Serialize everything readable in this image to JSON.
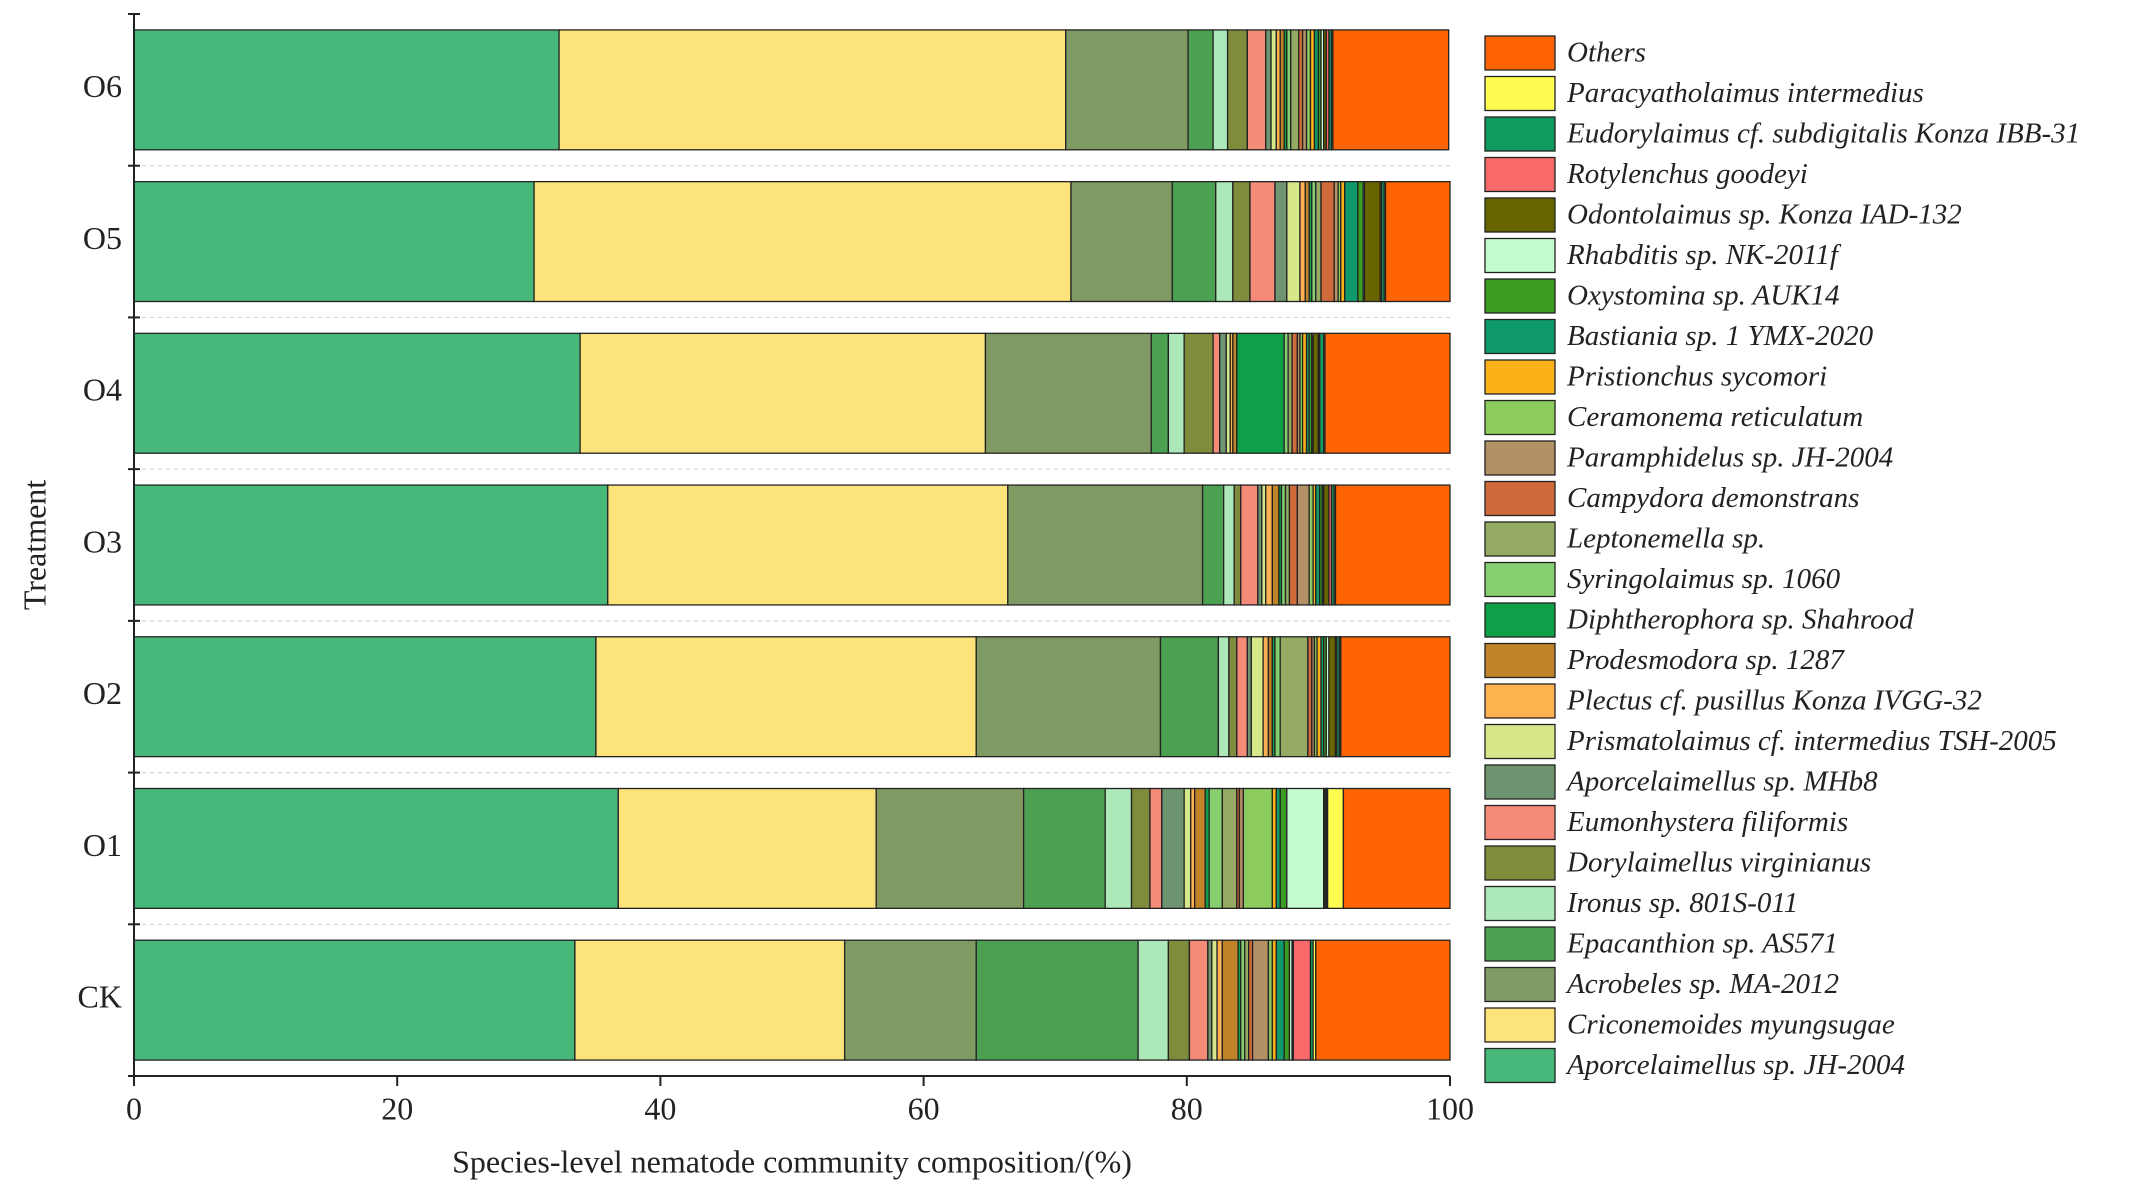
{
  "chart_data": {
    "type": "stacked-bar-horizontal",
    "x_label": "Species-level nematode community composition/(%)",
    "y_label": "Treatment",
    "categories": [
      "CK",
      "O1",
      "O2",
      "O3",
      "O4",
      "O5",
      "O6"
    ],
    "xlim": [
      0,
      100
    ],
    "xticks": [
      0,
      20,
      40,
      60,
      80,
      100
    ],
    "series": [
      {
        "name": "Aporcelaimellus sp. JH-2004",
        "color": "#48b87a",
        "values": [
          33.5,
          36.8,
          35.1,
          36.0,
          33.9,
          30.4,
          32.3
        ]
      },
      {
        "name": "Criconemoides myungsugae",
        "color": "#fde47a",
        "values": [
          20.5,
          19.6,
          28.9,
          30.4,
          30.8,
          40.8,
          38.5
        ]
      },
      {
        "name": "Acrobeles sp. MA-2012",
        "color": "#7f9a62",
        "values": [
          10.0,
          11.2,
          14.0,
          14.8,
          12.6,
          7.7,
          9.3
        ]
      },
      {
        "name": "Epacanthion sp. AS571",
        "color": "#4ca052",
        "values": [
          12.3,
          6.2,
          4.4,
          1.6,
          1.3,
          3.3,
          1.9
        ]
      },
      {
        "name": "Ironus sp. 801S-011",
        "color": "#ace8b8",
        "values": [
          2.3,
          2.0,
          0.8,
          0.8,
          1.2,
          1.3,
          1.1
        ]
      },
      {
        "name": "Dorylaimellus virginianus",
        "color": "#7f8c3c",
        "values": [
          1.6,
          1.4,
          0.6,
          0.5,
          2.2,
          1.3,
          1.5
        ]
      },
      {
        "name": "Eumonhystera filiformis",
        "color": "#f48a78",
        "values": [
          1.4,
          0.9,
          0.8,
          1.3,
          0.5,
          1.9,
          1.4
        ]
      },
      {
        "name": "Aporcelaimellus sp. MHb8",
        "color": "#6e9470",
        "values": [
          0.3,
          1.7,
          0.3,
          0.3,
          0.5,
          0.9,
          0.4
        ]
      },
      {
        "name": "Prismatolaimus cf. intermedius TSH-2005",
        "color": "#d6e88a",
        "values": [
          0.4,
          0.5,
          0.9,
          0.3,
          0.3,
          1.0,
          0.4
        ]
      },
      {
        "name": "Plectus cf. pusillus Konza IVGG-32",
        "color": "#fdb14f",
        "values": [
          0.4,
          0.3,
          0.4,
          0.5,
          0.2,
          0.4,
          0.3
        ]
      },
      {
        "name": "Prodesmodora sp. 1287",
        "color": "#c08327",
        "values": [
          1.2,
          0.8,
          0.3,
          0.5,
          0.3,
          0.3,
          0.3
        ]
      },
      {
        "name": "Diphtherophora sp. Shahrood",
        "color": "#0e9f48",
        "values": [
          0.2,
          0.3,
          0.2,
          0.2,
          3.6,
          0.2,
          0.2
        ]
      },
      {
        "name": "Syringolaimus sp. 1060",
        "color": "#86cf70",
        "values": [
          0.3,
          1.0,
          0.4,
          0.3,
          0.3,
          0.3,
          0.3
        ]
      },
      {
        "name": "Leptonemella sp.",
        "color": "#95aa63",
        "values": [
          0.3,
          1.1,
          2.1,
          0.3,
          0.3,
          0.4,
          0.6
        ]
      },
      {
        "name": "Campydora demonstrans",
        "color": "#cf6b3a",
        "values": [
          0.3,
          0.2,
          0.3,
          0.6,
          0.4,
          1.0,
          0.3
        ]
      },
      {
        "name": "Paramphidelus sp. JH-2004",
        "color": "#b39066",
        "values": [
          1.2,
          0.3,
          0.2,
          0.9,
          0.2,
          0.3,
          0.3
        ]
      },
      {
        "name": "Ceramonema reticulatum",
        "color": "#8ccc5e",
        "values": [
          0.3,
          2.2,
          0.2,
          0.3,
          0.2,
          0.2,
          0.3
        ]
      },
      {
        "name": "Pristionchus sycomori",
        "color": "#fbb118",
        "values": [
          0.3,
          0.3,
          0.3,
          0.2,
          0.3,
          0.3,
          0.3
        ]
      },
      {
        "name": "Bastiania sp. 1 YMX-2020",
        "color": "#0e9a6a",
        "values": [
          0.6,
          0.3,
          0.2,
          0.3,
          0.2,
          1.0,
          0.3
        ]
      },
      {
        "name": "Oxystomina sp. AUK14",
        "color": "#3c9c22",
        "values": [
          0.4,
          0.5,
          0.2,
          0.2,
          0.2,
          0.4,
          0.2
        ]
      },
      {
        "name": "Rhabditis sp. NK-2011f",
        "color": "#c4fcd0",
        "values": [
          0.2,
          2.8,
          0.2,
          0.1,
          0.1,
          0.1,
          0.2
        ]
      },
      {
        "name": "Odontolaimus sp. Konza IAD-132",
        "color": "#686400",
        "values": [
          0.1,
          0.1,
          0.5,
          0.4,
          0.4,
          1.2,
          0.2
        ]
      },
      {
        "name": "Rotylenchus goodeyi",
        "color": "#fa6a6a",
        "values": [
          1.3,
          0.1,
          0.1,
          0.2,
          0.1,
          0.1,
          0.2
        ]
      },
      {
        "name": "Eudorylaimus cf. subdigitalis Konza IBB-31",
        "color": "#109a5e",
        "values": [
          0.2,
          0.1,
          0.2,
          0.2,
          0.3,
          0.2,
          0.2
        ]
      },
      {
        "name": "Paracyatholaimus intermedius",
        "color": "#fefc50",
        "values": [
          0.2,
          1.2,
          0.1,
          0.1,
          0.1,
          0.1,
          0.1
        ]
      },
      {
        "name": "Others",
        "color": "#fe6402",
        "values": [
          10.2,
          8.1,
          8.3,
          8.7,
          9.5,
          4.9,
          8.8
        ]
      }
    ]
  }
}
